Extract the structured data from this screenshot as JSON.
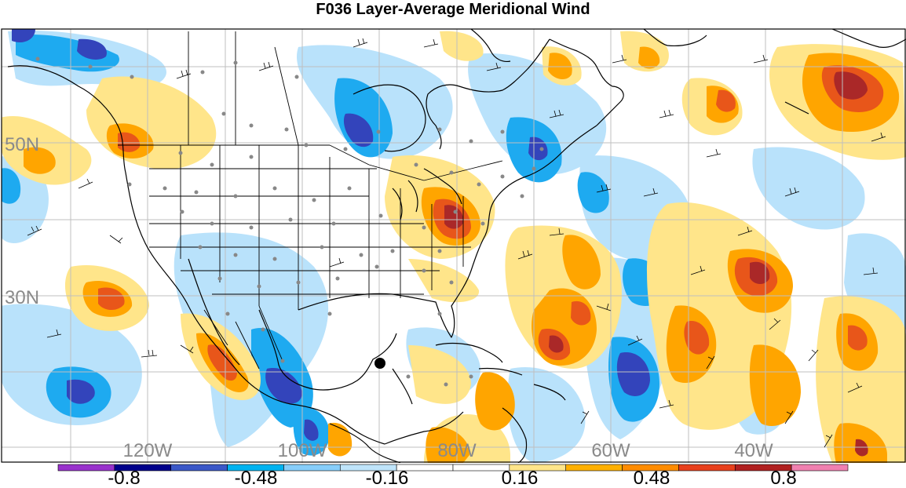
{
  "title": "F036 Layer-Average Meridional Wind",
  "lat_labels": [
    "50N",
    "30N"
  ],
  "lon_labels": [
    "120W",
    "100W",
    "80W",
    "60W",
    "40W"
  ],
  "legend": {
    "tick_labels": [
      "-0.8",
      "-0.48",
      "-0.16",
      "0.16",
      "0.48",
      "0.8"
    ],
    "colors": [
      "#9932cc",
      "#00008b",
      "#3b58c8",
      "#00b3f0",
      "#87cefa",
      "#bfe4fa",
      "#ffffff",
      "#ffffff",
      "#ffe58a",
      "#ffb000",
      "#ff8c00",
      "#e8401c",
      "#b02020",
      "#f080b0"
    ]
  },
  "colors": {
    "neg_strong": "#3344bb",
    "neg_mid": "#1eaaf0",
    "neg_weak": "#b9e2fb",
    "pos_weak": "#ffe58a",
    "pos_mid": "#ffa500",
    "pos_strong": "#e8561a",
    "pos_max": "#aa2828",
    "grid": "#bfbfbf",
    "coast": "#000000",
    "station": "#888888"
  }
}
